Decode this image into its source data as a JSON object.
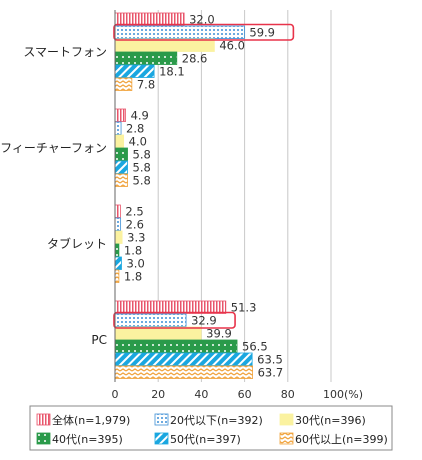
{
  "chart_data": {
    "type": "bar",
    "orientation": "horizontal",
    "categories": [
      "スマートフォン",
      "フィーチャーフォン",
      "タブレット",
      "PC"
    ],
    "series": [
      {
        "name": "全体(n=1,979)",
        "values": [
          32.0,
          4.9,
          2.5,
          51.3
        ],
        "color": "#e8556b",
        "pattern": "vertical-stripes"
      },
      {
        "name": "20代以下(n=392)",
        "values": [
          59.9,
          2.8,
          2.6,
          32.9
        ],
        "color": "#3d8fd6",
        "pattern": "dots"
      },
      {
        "name": "30代(n=396)",
        "values": [
          46.0,
          4.0,
          3.3,
          39.9
        ],
        "color": "#fbf2a0",
        "pattern": "solid"
      },
      {
        "name": "40代(n=395)",
        "values": [
          28.6,
          5.8,
          1.8,
          56.5
        ],
        "color": "#2a9a4a",
        "pattern": "dots"
      },
      {
        "name": "50代(n=397)",
        "values": [
          18.1,
          5.8,
          3.0,
          63.5
        ],
        "color": "#1aa7e0",
        "pattern": "diagonal-stripes"
      },
      {
        "name": "60代以上(n=399)",
        "values": [
          7.8,
          5.8,
          1.8,
          63.7
        ],
        "color": "#f0a23a",
        "pattern": "zigzag"
      }
    ],
    "value_labels": [
      [
        "32.0",
        "4.9",
        "2.5",
        "51.3"
      ],
      [
        "59.9",
        "2.8",
        "2.6",
        "32.9"
      ],
      [
        "46.0",
        "4.0",
        "3.3",
        "39.9"
      ],
      [
        "28.6",
        "5.8",
        "1.8",
        "56.5"
      ],
      [
        "18.1",
        "5.8",
        "3.0",
        "63.5"
      ],
      [
        "7.8",
        "5.8",
        "1.8",
        "63.7"
      ]
    ],
    "highlighted": [
      {
        "series": 1,
        "category": 0
      },
      {
        "series": 1,
        "category": 3
      }
    ],
    "highlight_color": "#e8334a",
    "xlim": [
      0,
      100
    ],
    "xticks": [
      "0",
      "20",
      "40",
      "60",
      "80",
      "100(%)"
    ],
    "grid": true,
    "legend_position": "bottom"
  }
}
